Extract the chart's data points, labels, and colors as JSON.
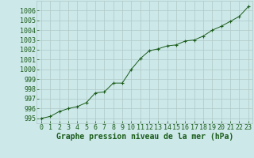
{
  "x": [
    0,
    1,
    2,
    3,
    4,
    5,
    6,
    7,
    8,
    9,
    10,
    11,
    12,
    13,
    14,
    15,
    16,
    17,
    18,
    19,
    20,
    21,
    22,
    23
  ],
  "y": [
    995.0,
    995.2,
    995.7,
    996.0,
    996.2,
    996.6,
    997.6,
    997.7,
    998.6,
    998.6,
    1000.0,
    1001.1,
    1001.9,
    1002.1,
    1002.4,
    1002.5,
    1002.9,
    1003.0,
    1003.4,
    1004.0,
    1004.4,
    1004.9,
    1005.4,
    1006.4
  ],
  "line_color": "#1a5c1a",
  "marker_color": "#1a5c1a",
  "bg_color": "#cce8e8",
  "grid_color": "#b0c8c8",
  "xlabel": "Graphe pression niveau de la mer (hPa)",
  "ylim": [
    994.5,
    1007.0
  ],
  "xlim": [
    -0.5,
    23.5
  ],
  "yticks": [
    995,
    996,
    997,
    998,
    999,
    1000,
    1001,
    1002,
    1003,
    1004,
    1005,
    1006
  ],
  "xticks": [
    0,
    1,
    2,
    3,
    4,
    5,
    6,
    7,
    8,
    9,
    10,
    11,
    12,
    13,
    14,
    15,
    16,
    17,
    18,
    19,
    20,
    21,
    22,
    23
  ],
  "tick_color": "#1a5c1a",
  "label_color": "#1a5c1a",
  "label_fontsize": 7.0,
  "tick_fontsize": 6.0,
  "ytick_fontsize": 6.0
}
